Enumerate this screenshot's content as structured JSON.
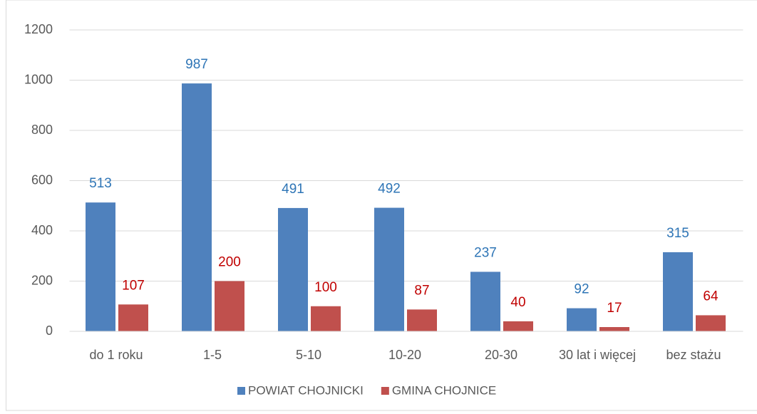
{
  "chart_data": {
    "type": "bar",
    "categories": [
      "do 1 roku",
      "1-5",
      "5-10",
      "10-20",
      "20-30",
      "30 lat i więcej",
      "bez stażu"
    ],
    "series": [
      {
        "name": "POWIAT CHOJNICKI",
        "color": "#4f81bd",
        "label_color": "#2e75b6",
        "values": [
          513,
          987,
          491,
          492,
          237,
          92,
          315
        ]
      },
      {
        "name": "GMINA CHOJNICE",
        "color": "#c0504d",
        "label_color": "#c00000",
        "values": [
          107,
          200,
          100,
          87,
          40,
          17,
          64
        ]
      }
    ],
    "ylim": [
      0,
      1200
    ],
    "yticks": [
      0,
      200,
      400,
      600,
      800,
      1000,
      1200
    ],
    "grid": true,
    "legend": "bottom"
  }
}
